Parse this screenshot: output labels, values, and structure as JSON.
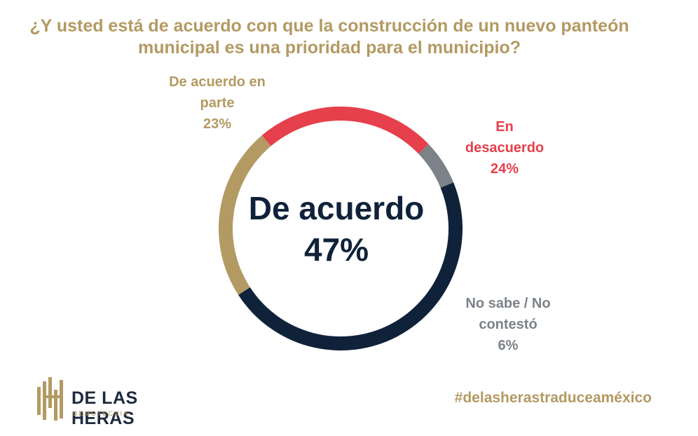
{
  "title_lines": [
    "¿Y usted está de acuerdo con que la construcción de un nuevo panteón",
    "municipal es una prioridad para el municipio?"
  ],
  "chart_data": {
    "type": "pie",
    "title": "¿Y usted está de acuerdo con que la construcción de un nuevo panteón municipal es una prioridad para el municipio?",
    "slices": [
      {
        "name": "De acuerdo en parte",
        "value": 23,
        "label": "23%",
        "color": "#b39a62",
        "label_lines": [
          "De acuerdo en",
          "parte"
        ]
      },
      {
        "name": "En desacuerdo",
        "value": 24,
        "label": "24%",
        "color": "#e5404b",
        "label_lines": [
          "En",
          "desacuerdo"
        ]
      },
      {
        "name": "No sabe / No contestó",
        "value": 6,
        "label": "6%",
        "color": "#7c8288",
        "label_lines": [
          "No sabe / No",
          "contestó"
        ]
      },
      {
        "name": "De acuerdo",
        "value": 47,
        "label": "47%",
        "color": "#10223a"
      }
    ],
    "center_label": {
      "name": "De acuerdo",
      "value": "47%"
    },
    "donut": true
  },
  "logo": {
    "name": "DE LAS HERAS",
    "subtitle": "DEMOTECNIA"
  },
  "hashtag": "#delasherastraduceaméxico",
  "colors": {
    "gold": "#b39a62",
    "navy": "#10223a",
    "red": "#e5404b",
    "gray": "#7c8288"
  }
}
